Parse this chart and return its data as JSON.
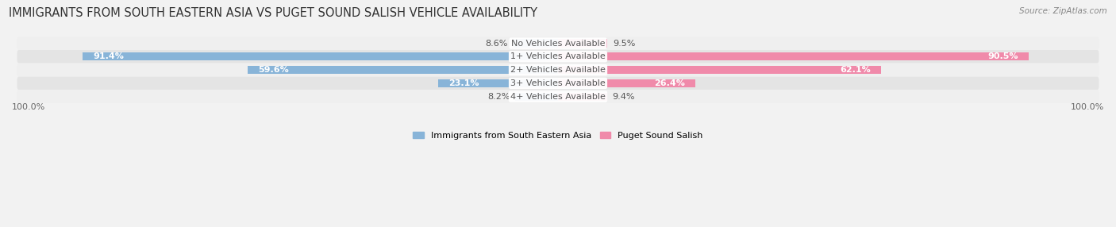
{
  "title": "IMMIGRANTS FROM SOUTH EASTERN ASIA VS PUGET SOUND SALISH VEHICLE AVAILABILITY",
  "source": "Source: ZipAtlas.com",
  "categories": [
    "No Vehicles Available",
    "1+ Vehicles Available",
    "2+ Vehicles Available",
    "3+ Vehicles Available",
    "4+ Vehicles Available"
  ],
  "left_values": [
    8.6,
    91.4,
    59.6,
    23.1,
    8.2
  ],
  "right_values": [
    9.5,
    90.5,
    62.1,
    26.4,
    9.4
  ],
  "left_color": "#88b4d8",
  "right_color": "#f08aaa",
  "bar_height": 0.6,
  "bg_colors": [
    "#efefef",
    "#e4e4e4"
  ],
  "left_label": "Immigrants from South Eastern Asia",
  "right_label": "Puget Sound Salish",
  "title_fontsize": 10.5,
  "label_fontsize": 8.0,
  "value_fontsize": 8.0,
  "source_fontsize": 7.5,
  "max_val": 100
}
